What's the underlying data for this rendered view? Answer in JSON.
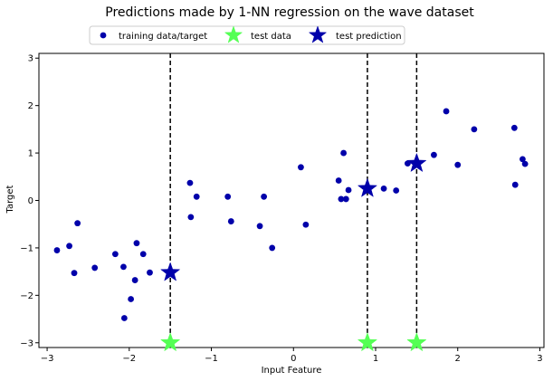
{
  "chart_data": {
    "type": "scatter",
    "title": "Predictions made by 1-NN regression on the wave dataset",
    "xlabel": "Input Feature",
    "ylabel": "Target",
    "xlim": [
      -3.1,
      3.05
    ],
    "ylim": [
      -3.1,
      3.1
    ],
    "xticks": [
      -3,
      -2,
      -1,
      0,
      1,
      2,
      3
    ],
    "yticks": [
      -3,
      -2,
      -1,
      0,
      1,
      2,
      3
    ],
    "xtick_labels": [
      "−3",
      "−2",
      "−1",
      "0",
      "1",
      "2",
      "3"
    ],
    "ytick_labels": [
      "−3",
      "−2",
      "−1",
      "0",
      "1",
      "2",
      "3"
    ],
    "grid": false,
    "legend": {
      "placement": "top-center, above plot",
      "entries": [
        "training data/target",
        "test data",
        "test prediction"
      ]
    },
    "colors": {
      "training": "#0000aa",
      "test_data": "#55ff55",
      "test_prediction": "#0000aa",
      "lines": "#000000"
    },
    "series": [
      {
        "name": "training data/target",
        "marker": "circle",
        "points": [
          [
            -2.88,
            -1.05
          ],
          [
            -2.73,
            -0.96
          ],
          [
            -2.67,
            -1.53
          ],
          [
            -2.63,
            -0.48
          ],
          [
            -2.42,
            -1.42
          ],
          [
            -2.17,
            -1.13
          ],
          [
            -2.07,
            -1.4
          ],
          [
            -2.06,
            -2.48
          ],
          [
            -1.98,
            -2.08
          ],
          [
            -1.93,
            -1.68
          ],
          [
            -1.91,
            -0.9
          ],
          [
            -1.83,
            -1.13
          ],
          [
            -1.75,
            -1.52
          ],
          [
            -1.26,
            0.37
          ],
          [
            -1.25,
            -0.35
          ],
          [
            -1.18,
            0.08
          ],
          [
            -0.8,
            0.08
          ],
          [
            -0.76,
            -0.44
          ],
          [
            -0.41,
            -0.54
          ],
          [
            -0.36,
            0.08
          ],
          [
            -0.26,
            -1.0
          ],
          [
            0.09,
            0.7
          ],
          [
            0.15,
            -0.51
          ],
          [
            0.55,
            0.42
          ],
          [
            0.58,
            0.03
          ],
          [
            0.61,
            1.0
          ],
          [
            0.64,
            0.03
          ],
          [
            0.67,
            0.22
          ],
          [
            1.1,
            0.25
          ],
          [
            1.25,
            0.21
          ],
          [
            1.39,
            0.78
          ],
          [
            1.71,
            0.96
          ],
          [
            1.86,
            1.88
          ],
          [
            2.0,
            0.75
          ],
          [
            2.2,
            1.5
          ],
          [
            2.69,
            1.53
          ],
          [
            2.7,
            0.33
          ],
          [
            2.79,
            0.87
          ],
          [
            2.82,
            0.77
          ]
        ]
      },
      {
        "name": "test data",
        "marker": "star",
        "points": [
          [
            -1.5,
            -3.0
          ],
          [
            0.9,
            -3.0
          ],
          [
            1.5,
            -3.0
          ]
        ]
      },
      {
        "name": "test prediction",
        "marker": "star",
        "points": [
          [
            -1.5,
            -1.52
          ],
          [
            0.9,
            0.25
          ],
          [
            1.5,
            0.78
          ]
        ]
      }
    ],
    "vertical_lines": {
      "style": "dashed",
      "x": [
        -1.5,
        0.9,
        1.5
      ]
    }
  }
}
